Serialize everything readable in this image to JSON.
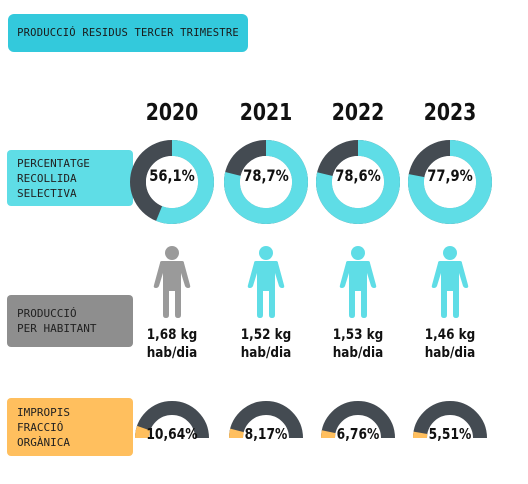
{
  "title": "PRODUCCIÓ RESIDUS TERCER TRIMESTRE",
  "labels": {
    "recollida": [
      "PERCENTATGE",
      "RECOLLIDA",
      "SELECTIVA"
    ],
    "produccio": [
      "PRODUCCIÓ",
      "PER HABITANT"
    ],
    "impropis": [
      "IMPROPIS",
      "FRACCIÓ",
      "ORGÀNICA"
    ]
  },
  "colors": {
    "accent": "#5fdde6",
    "dark": "#444b52",
    "grey": "#9a9a9a",
    "orange": "#ffbf5e"
  },
  "icons": {
    "person": "person-icon"
  },
  "chart_data": [
    {
      "type": "pie",
      "categories": [
        "2020",
        "2021",
        "2022",
        "2023"
      ],
      "values": [
        56.1,
        78.7,
        78.6,
        77.9
      ],
      "value_labels": [
        "56,1%",
        "78,7%",
        "78,6%",
        "77,9%"
      ]
    },
    {
      "type": "table",
      "categories": [
        "2020",
        "2021",
        "2022",
        "2023"
      ],
      "values": [
        1.68,
        1.52,
        1.53,
        1.46
      ],
      "value_labels": [
        "1,68 kg",
        "1,52 kg",
        "1,53 kg",
        "1,46 kg"
      ],
      "unit": "hab/dia"
    },
    {
      "type": "bar",
      "categories": [
        "2020",
        "2021",
        "2022",
        "2023"
      ],
      "values": [
        10.64,
        8.17,
        6.76,
        5.51
      ],
      "value_labels": [
        "10,64%",
        "8,17%",
        "6,76%",
        "5,51%"
      ]
    }
  ]
}
